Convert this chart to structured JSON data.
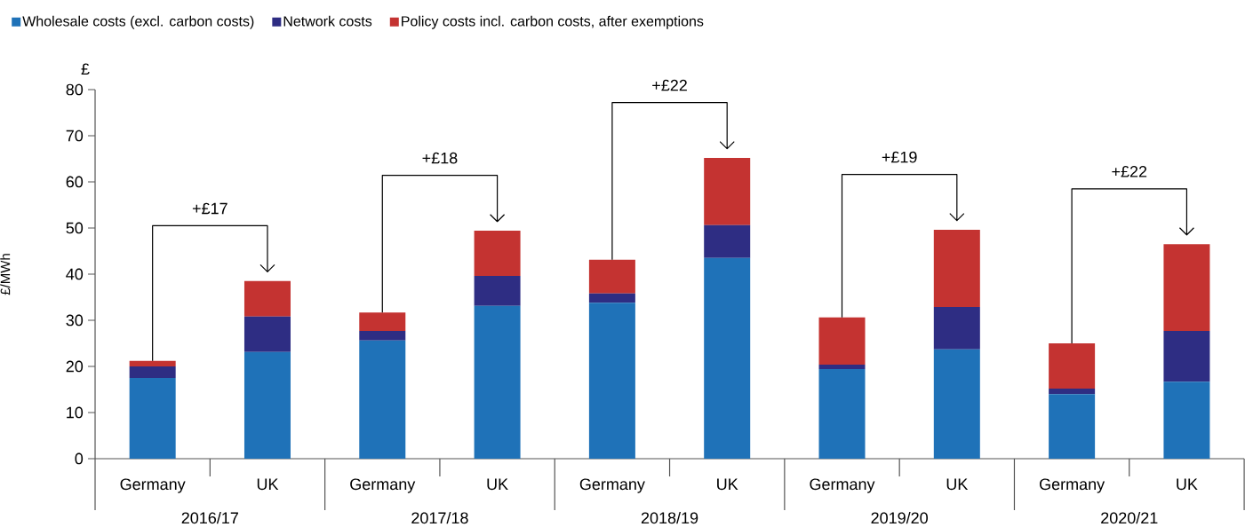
{
  "chart_data": {
    "type": "bar",
    "stacked": true,
    "ylabel": "£/MWh",
    "categories": [
      "Germany",
      "UK",
      "Germany",
      "UK",
      "Germany",
      "UK",
      "Germany",
      "UK",
      "Germany",
      "UK"
    ],
    "series": [
      {
        "name": "Wholesale costs (excl. carbon costs)",
        "color": "#1f72b8",
        "values": [
          17.5,
          23.1,
          25.6,
          33.1,
          33.8,
          43.5,
          19.4,
          23.7,
          14.0,
          16.7
        ]
      },
      {
        "name": "Network costs",
        "color": "#2e2d83",
        "values": [
          2.5,
          7.7,
          2.1,
          6.5,
          2.0,
          7.1,
          1.0,
          9.2,
          1.2,
          11.0
        ]
      },
      {
        "name": "Policy costs incl. carbon costs, after exemptions",
        "color": "#c43331",
        "values": [
          1.2,
          7.7,
          4.0,
          9.8,
          7.3,
          14.6,
          10.2,
          16.7,
          9.8,
          18.8
        ]
      }
    ],
    "annotations": [
      "£",
      "2016/17",
      "2017/18",
      "2018/19",
      "2019/20",
      "2020/21",
      "+£17",
      "+£18",
      "+£22",
      "+£19",
      "+£22"
    ],
    "ylim": [
      0,
      80
    ],
    "yticks": [
      0,
      10,
      20,
      30,
      40,
      50,
      60,
      70,
      80
    ],
    "legend": "top left"
  }
}
